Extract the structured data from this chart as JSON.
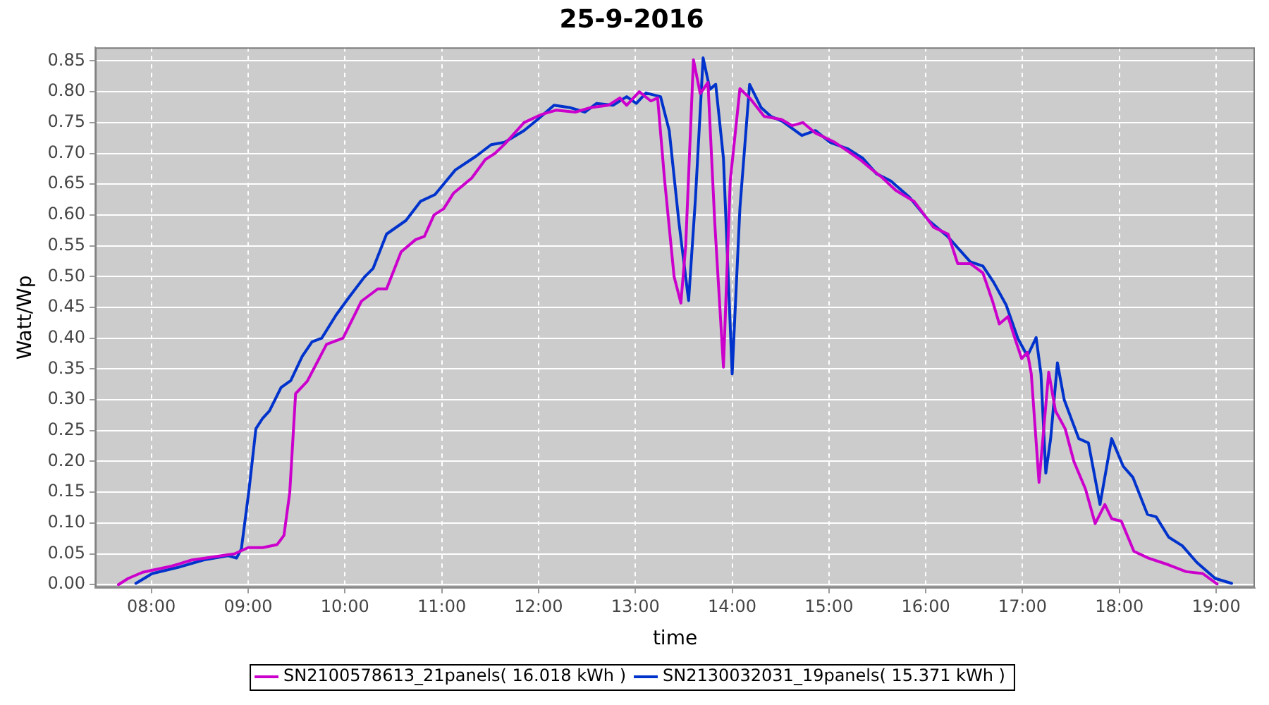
{
  "chart_data": {
    "type": "line",
    "title": "25-9-2016",
    "xlabel": "time",
    "ylabel": "Watt/Wp",
    "xlim": [
      7.42,
      19.4
    ],
    "ylim": [
      -0.005,
      0.872
    ],
    "xticks": [
      {
        "value": 8,
        "label": "08:00"
      },
      {
        "value": 9,
        "label": "09:00"
      },
      {
        "value": 10,
        "label": "10:00"
      },
      {
        "value": 11,
        "label": "11:00"
      },
      {
        "value": 12,
        "label": "12:00"
      },
      {
        "value": 13,
        "label": "13:00"
      },
      {
        "value": 14,
        "label": "14:00"
      },
      {
        "value": 15,
        "label": "15:00"
      },
      {
        "value": 16,
        "label": "16:00"
      },
      {
        "value": 17,
        "label": "17:00"
      },
      {
        "value": 18,
        "label": "18:00"
      },
      {
        "value": 19,
        "label": "19:00"
      }
    ],
    "yticks": [
      {
        "value": 0,
        "label": "0.00"
      },
      {
        "value": 0.05,
        "label": "0.05"
      },
      {
        "value": 0.1,
        "label": "0.10"
      },
      {
        "value": 0.15,
        "label": "0.15"
      },
      {
        "value": 0.2,
        "label": "0.20"
      },
      {
        "value": 0.25,
        "label": "0.25"
      },
      {
        "value": 0.3,
        "label": "0.30"
      },
      {
        "value": 0.35,
        "label": "0.35"
      },
      {
        "value": 0.4,
        "label": "0.40"
      },
      {
        "value": 0.45,
        "label": "0.45"
      },
      {
        "value": 0.5,
        "label": "0.50"
      },
      {
        "value": 0.55,
        "label": "0.55"
      },
      {
        "value": 0.6,
        "label": "0.60"
      },
      {
        "value": 0.65,
        "label": "0.65"
      },
      {
        "value": 0.7,
        "label": "0.70"
      },
      {
        "value": 0.75,
        "label": "0.75"
      },
      {
        "value": 0.8,
        "label": "0.80"
      },
      {
        "value": 0.85,
        "label": "0.85"
      }
    ],
    "grid": true,
    "legend": "bottom",
    "marker": "none",
    "line_style": "solid",
    "series": [
      {
        "name": "SN2100578613_21panels( 16.018 kWh )",
        "color": "#cc00cc",
        "x": [
          7.66,
          7.76,
          7.91,
          8.21,
          8.42,
          8.64,
          8.86,
          9.0,
          9.15,
          9.3,
          9.37,
          9.43,
          9.49,
          9.61,
          9.81,
          9.98,
          10.17,
          10.34,
          10.43,
          10.58,
          10.73,
          10.82,
          10.92,
          11.02,
          11.12,
          11.31,
          11.45,
          11.55,
          11.65,
          11.85,
          12.03,
          12.18,
          12.38,
          12.53,
          12.72,
          12.84,
          12.91,
          13.04,
          13.16,
          13.23,
          13.3,
          13.4,
          13.47,
          13.52,
          13.6,
          13.67,
          13.75,
          13.82,
          13.91,
          13.98,
          14.08,
          14.18,
          14.33,
          14.51,
          14.62,
          14.73,
          14.86,
          15.06,
          15.2,
          15.32,
          15.45,
          15.54,
          15.69,
          15.88,
          16.08,
          16.23,
          16.33,
          16.46,
          16.59,
          16.69,
          16.76,
          16.85,
          16.92,
          16.99,
          17.05,
          17.09,
          17.17,
          17.21,
          17.27,
          17.34,
          17.44,
          17.53,
          17.65,
          17.75,
          17.85,
          17.92,
          18.02,
          18.15,
          18.3,
          18.51,
          18.69,
          18.86,
          19.01
        ],
        "values": [
          0.0,
          0.01,
          0.02,
          0.03,
          0.04,
          0.045,
          0.05,
          0.06,
          0.06,
          0.065,
          0.08,
          0.15,
          0.31,
          0.33,
          0.39,
          0.4,
          0.46,
          0.48,
          0.48,
          0.54,
          0.56,
          0.565,
          0.6,
          0.61,
          0.635,
          0.66,
          0.69,
          0.7,
          0.715,
          0.75,
          0.763,
          0.77,
          0.767,
          0.774,
          0.778,
          0.79,
          0.778,
          0.8,
          0.785,
          0.79,
          0.66,
          0.5,
          0.457,
          0.55,
          0.852,
          0.797,
          0.815,
          0.588,
          0.353,
          0.655,
          0.805,
          0.79,
          0.76,
          0.755,
          0.745,
          0.75,
          0.733,
          0.718,
          0.703,
          0.69,
          0.673,
          0.662,
          0.64,
          0.622,
          0.58,
          0.569,
          0.521,
          0.521,
          0.506,
          0.46,
          0.423,
          0.435,
          0.4,
          0.367,
          0.377,
          0.342,
          0.166,
          0.237,
          0.345,
          0.282,
          0.253,
          0.2,
          0.155,
          0.099,
          0.13,
          0.107,
          0.103,
          0.054,
          0.043,
          0.032,
          0.021,
          0.018,
          0.001
        ]
      },
      {
        "name": "SN2130032031_19panels( 15.371 kWh )",
        "color": "#0033cc",
        "x": [
          7.84,
          8.01,
          8.3,
          8.54,
          8.79,
          8.88,
          8.93,
          9.01,
          9.08,
          9.15,
          9.22,
          9.34,
          9.44,
          9.56,
          9.66,
          9.76,
          9.91,
          10.05,
          10.2,
          10.29,
          10.43,
          10.63,
          10.78,
          10.93,
          11.14,
          11.36,
          11.51,
          11.65,
          11.85,
          11.99,
          12.16,
          12.33,
          12.48,
          12.6,
          12.77,
          12.91,
          13.01,
          13.11,
          13.26,
          13.35,
          13.45,
          13.55,
          13.62,
          13.7,
          13.77,
          13.83,
          13.91,
          14.0,
          14.08,
          14.18,
          14.3,
          14.4,
          14.52,
          14.72,
          14.86,
          15.01,
          15.2,
          15.35,
          15.49,
          15.64,
          15.83,
          16.03,
          16.22,
          16.46,
          16.59,
          16.7,
          16.83,
          16.95,
          17.05,
          17.14,
          17.19,
          17.24,
          17.29,
          17.36,
          17.43,
          17.58,
          17.68,
          17.8,
          17.92,
          18.04,
          18.14,
          18.29,
          18.38,
          18.51,
          18.65,
          18.8,
          18.99,
          19.16
        ],
        "values": [
          0.002,
          0.018,
          0.029,
          0.04,
          0.047,
          0.043,
          0.058,
          0.155,
          0.253,
          0.27,
          0.282,
          0.32,
          0.331,
          0.371,
          0.394,
          0.4,
          0.438,
          0.468,
          0.499,
          0.513,
          0.569,
          0.591,
          0.622,
          0.633,
          0.673,
          0.696,
          0.714,
          0.718,
          0.737,
          0.755,
          0.778,
          0.774,
          0.767,
          0.781,
          0.778,
          0.792,
          0.781,
          0.798,
          0.792,
          0.737,
          0.588,
          0.461,
          0.625,
          0.855,
          0.804,
          0.812,
          0.692,
          0.342,
          0.611,
          0.812,
          0.774,
          0.76,
          0.752,
          0.729,
          0.737,
          0.718,
          0.707,
          0.692,
          0.667,
          0.655,
          0.629,
          0.591,
          0.566,
          0.524,
          0.517,
          0.491,
          0.454,
          0.4,
          0.371,
          0.401,
          0.342,
          0.181,
          0.237,
          0.36,
          0.3,
          0.237,
          0.23,
          0.13,
          0.237,
          0.192,
          0.174,
          0.114,
          0.11,
          0.077,
          0.063,
          0.036,
          0.01,
          0.002
        ]
      }
    ]
  }
}
